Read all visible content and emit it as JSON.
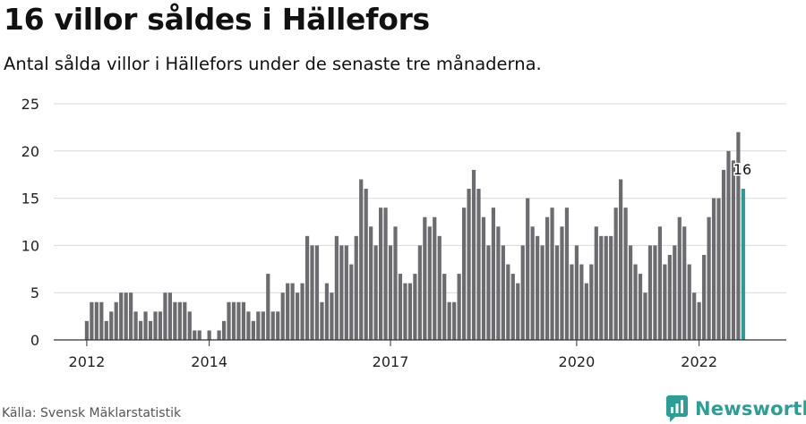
{
  "header": {
    "title": "16 villor såldes i Hällefors",
    "subtitle": "Antal sålda villor i Hällefors under de senaste tre månaderna."
  },
  "footer": {
    "source": "Källa: Svensk Mäklarstatistik",
    "brand": "Newsworthy"
  },
  "colors": {
    "bar": "#6b6b70",
    "highlight": "#2a9c94",
    "grid": "#d9d9d9",
    "axis": "#333333",
    "text": "#222222"
  },
  "chart_data": {
    "type": "bar",
    "title": "16 villor såldes i Hällefors",
    "subtitle": "Antal sålda villor i Hällefors under de senaste tre månaderna.",
    "xlabel": "",
    "ylabel": "",
    "ylim": [
      0,
      25
    ],
    "yticks": [
      0,
      5,
      10,
      15,
      20,
      25
    ],
    "grid": true,
    "legend": "none",
    "first_month": "2012-01",
    "xticks": [
      {
        "label": "2012",
        "index": 0
      },
      {
        "label": "2014",
        "index": 25
      },
      {
        "label": "2017",
        "index": 62
      },
      {
        "label": "2020",
        "index": 100
      },
      {
        "label": "2022",
        "index": 125
      }
    ],
    "values": [
      2,
      4,
      4,
      4,
      2,
      3,
      4,
      5,
      5,
      5,
      3,
      2,
      3,
      2,
      3,
      3,
      5,
      5,
      4,
      4,
      4,
      3,
      1,
      1,
      0,
      1,
      0,
      1,
      2,
      4,
      4,
      4,
      4,
      3,
      2,
      3,
      3,
      7,
      3,
      3,
      5,
      6,
      6,
      5,
      6,
      11,
      10,
      10,
      4,
      6,
      5,
      11,
      10,
      10,
      8,
      11,
      17,
      16,
      12,
      10,
      14,
      14,
      10,
      12,
      7,
      6,
      6,
      7,
      10,
      13,
      12,
      13,
      11,
      7,
      4,
      4,
      7,
      14,
      16,
      18,
      16,
      13,
      10,
      14,
      12,
      10,
      8,
      7,
      6,
      10,
      15,
      12,
      11,
      10,
      13,
      14,
      10,
      12,
      14,
      8,
      10,
      8,
      6,
      8,
      12,
      11,
      11,
      11,
      14,
      17,
      14,
      10,
      8,
      7,
      5,
      10,
      10,
      12,
      8,
      9,
      10,
      13,
      12,
      8,
      5,
      4,
      9,
      13,
      15,
      15,
      18,
      20,
      19,
      22,
      16
    ],
    "highlight_index": 134,
    "highlight_label": "16"
  }
}
